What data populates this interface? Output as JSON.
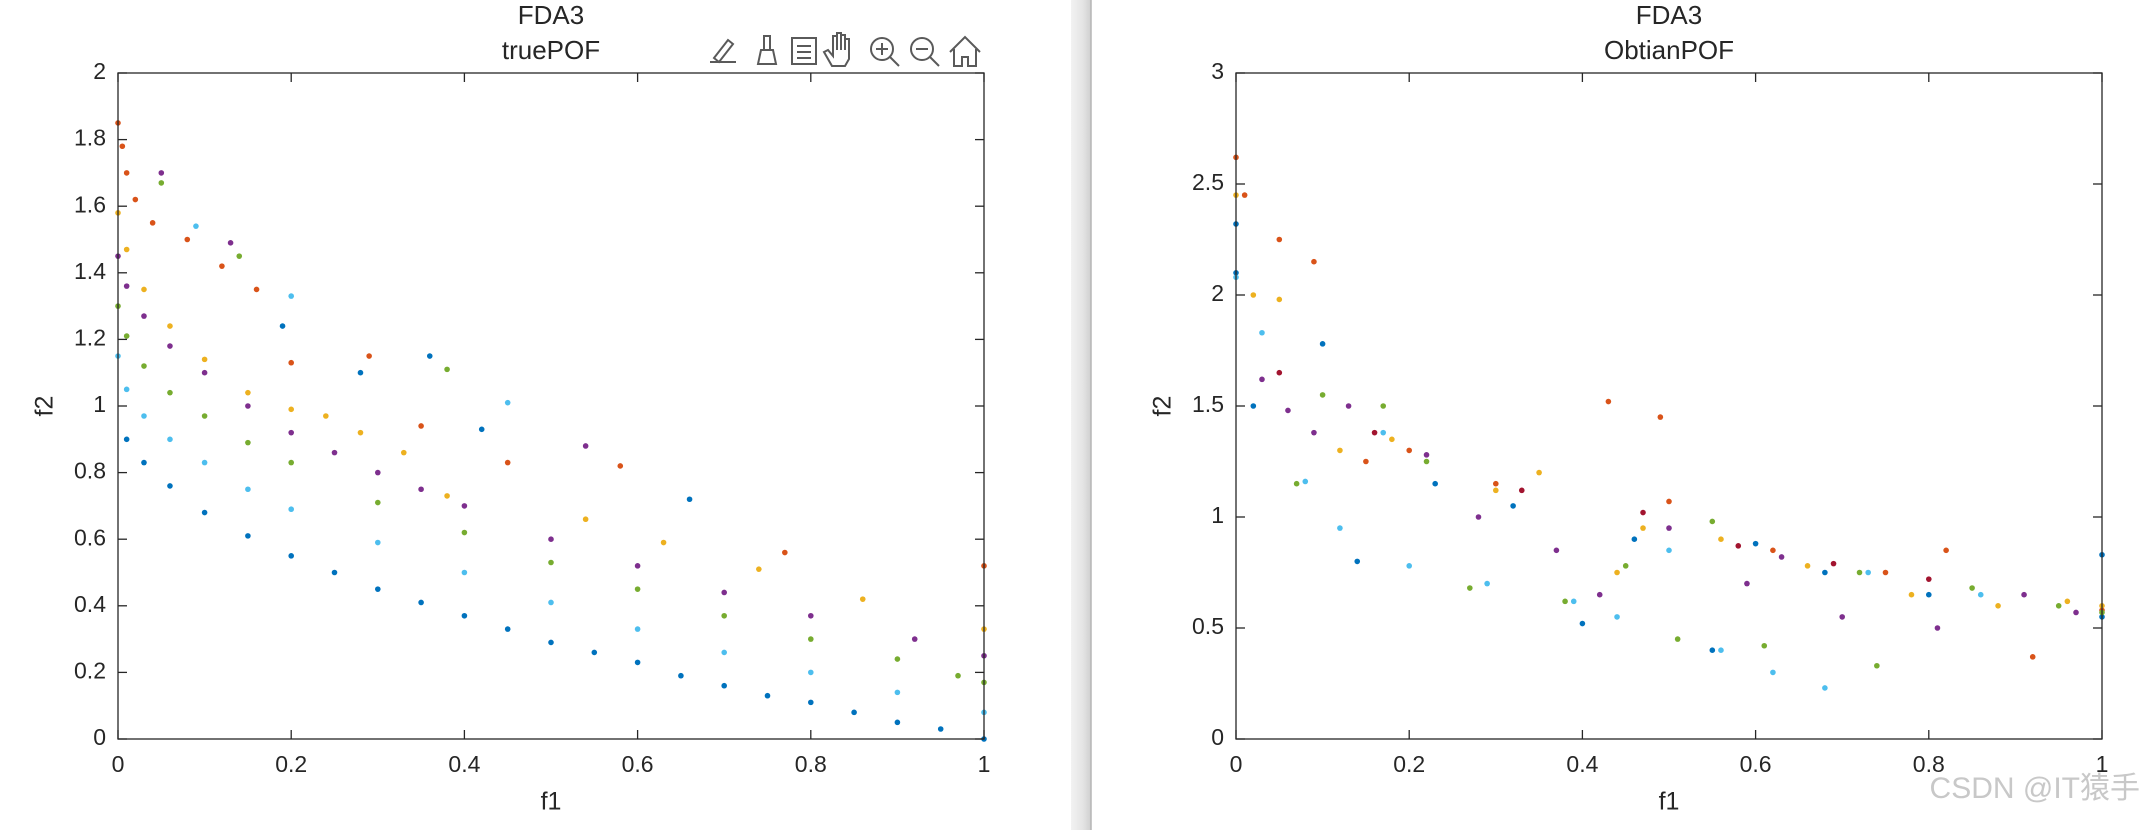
{
  "watermark": "CSDN @IT猿手",
  "chart_data": [
    {
      "type": "scatter",
      "title": "FDA3",
      "subtitle": "truePOF",
      "xlabel": "f1",
      "ylabel": "f2",
      "xlim": [
        0,
        1
      ],
      "ylim": [
        0,
        2
      ],
      "xticks": [
        0,
        0.2,
        0.4,
        0.6,
        0.8,
        1
      ],
      "yticks": [
        0,
        0.2,
        0.4,
        0.6,
        0.8,
        1,
        1.2,
        1.4,
        1.6,
        1.8,
        2
      ],
      "series": [
        {
          "color": "#0072BD",
          "x": [
            0.01,
            0.03,
            0.06,
            0.1,
            0.15,
            0.2,
            0.25,
            0.3,
            0.35,
            0.4,
            0.45,
            0.5,
            0.55,
            0.6,
            0.65,
            0.7,
            0.75,
            0.8,
            0.85,
            0.9,
            0.95,
            1,
            0.28,
            0.36,
            0.42,
            0.66,
            0.19
          ],
          "y": [
            0.9,
            0.83,
            0.76,
            0.68,
            0.61,
            0.55,
            0.5,
            0.45,
            0.41,
            0.37,
            0.33,
            0.29,
            0.26,
            0.23,
            0.19,
            0.16,
            0.13,
            0.11,
            0.08,
            0.05,
            0.03,
            0,
            1.1,
            1.15,
            0.93,
            0.72,
            1.24
          ]
        },
        {
          "color": "#4DBEEE",
          "x": [
            0,
            0.01,
            0.03,
            0.06,
            0.1,
            0.15,
            0.2,
            0.3,
            0.4,
            0.5,
            0.6,
            0.7,
            0.8,
            0.9,
            1,
            0.2,
            0.45,
            0.09
          ],
          "y": [
            1.15,
            1.05,
            0.97,
            0.9,
            0.83,
            0.75,
            0.69,
            0.59,
            0.5,
            0.41,
            0.33,
            0.26,
            0.2,
            0.14,
            0.08,
            1.33,
            1.01,
            1.54
          ]
        },
        {
          "color": "#77AC30",
          "x": [
            0,
            0.01,
            0.03,
            0.06,
            0.1,
            0.15,
            0.2,
            0.3,
            0.4,
            0.5,
            0.6,
            0.7,
            0.8,
            0.9,
            0.97,
            1,
            0.05,
            0.14,
            0.38
          ],
          "y": [
            1.3,
            1.21,
            1.12,
            1.04,
            0.97,
            0.89,
            0.83,
            0.71,
            0.62,
            0.53,
            0.45,
            0.37,
            0.3,
            0.24,
            0.19,
            0.17,
            1.67,
            1.45,
            1.11
          ]
        },
        {
          "color": "#7E2F8E",
          "x": [
            0,
            0.01,
            0.03,
            0.06,
            0.1,
            0.15,
            0.2,
            0.25,
            0.3,
            0.35,
            0.4,
            0.5,
            0.6,
            0.7,
            0.8,
            0.92,
            0.54,
            0.13,
            0.05,
            1
          ],
          "y": [
            1.45,
            1.36,
            1.27,
            1.18,
            1.1,
            1,
            0.92,
            0.86,
            0.8,
            0.75,
            0.7,
            0.6,
            0.52,
            0.44,
            0.37,
            0.3,
            0.88,
            1.49,
            1.7,
            0.25
          ]
        },
        {
          "color": "#EDB120",
          "x": [
            0,
            0.01,
            0.03,
            0.06,
            0.1,
            0.15,
            0.2,
            0.24,
            0.28,
            0.33,
            0.38,
            0.54,
            0.63,
            0.74,
            0.86,
            1
          ],
          "y": [
            1.58,
            1.47,
            1.35,
            1.24,
            1.14,
            1.04,
            0.99,
            0.97,
            0.92,
            0.86,
            0.73,
            0.66,
            0.59,
            0.51,
            0.42,
            0.33
          ]
        },
        {
          "color": "#D95319",
          "x": [
            0,
            0.005,
            0.01,
            0.02,
            0.04,
            0.08,
            0.12,
            0.16,
            0.2,
            0.29,
            0.35,
            0.45,
            0.58,
            0.77,
            1
          ],
          "y": [
            1.85,
            1.78,
            1.7,
            1.62,
            1.55,
            1.5,
            1.42,
            1.35,
            1.13,
            1.15,
            0.94,
            0.83,
            0.82,
            0.56,
            0.52
          ]
        }
      ]
    },
    {
      "type": "scatter",
      "title": "FDA3",
      "subtitle": "ObtianPOF",
      "xlabel": "f1",
      "ylabel": "f2",
      "xlim": [
        0,
        1
      ],
      "ylim": [
        0,
        3
      ],
      "xticks": [
        0,
        0.2,
        0.4,
        0.6,
        0.8,
        1
      ],
      "yticks": [
        0,
        0.5,
        1,
        1.5,
        2,
        2.5,
        3
      ],
      "series": [
        {
          "color": "#0072BD",
          "x": [
            0,
            0,
            0.02,
            0.1,
            0.14,
            0.23,
            0.32,
            0.4,
            0.46,
            0.55,
            0.6,
            0.68,
            0.8,
            1,
            1
          ],
          "y": [
            2.32,
            2.1,
            1.5,
            1.78,
            0.8,
            1.15,
            1.05,
            0.52,
            0.9,
            0.4,
            0.88,
            0.75,
            0.65,
            0.83,
            0.55
          ]
        },
        {
          "color": "#D95319",
          "x": [
            0,
            0.01,
            0.05,
            0.09,
            0.15,
            0.2,
            0.3,
            0.43,
            0.49,
            0.5,
            0.62,
            0.75,
            0.82,
            0.92,
            1
          ],
          "y": [
            2.62,
            2.45,
            2.25,
            2.15,
            1.25,
            1.3,
            1.15,
            1.52,
            1.45,
            1.07,
            0.85,
            0.75,
            0.85,
            0.37,
            0.58
          ]
        },
        {
          "color": "#EDB120",
          "x": [
            0,
            0.02,
            0.05,
            0.12,
            0.18,
            0.3,
            0.35,
            0.44,
            0.47,
            0.56,
            0.66,
            0.78,
            0.88,
            0.96,
            1
          ],
          "y": [
            2.45,
            2,
            1.98,
            1.3,
            1.35,
            1.12,
            1.2,
            0.75,
            0.95,
            0.9,
            0.78,
            0.65,
            0.6,
            0.62,
            0.6
          ]
        },
        {
          "color": "#7E2F8E",
          "x": [
            0.03,
            0.06,
            0.09,
            0.13,
            0.22,
            0.28,
            0.37,
            0.42,
            0.5,
            0.59,
            0.63,
            0.7,
            0.81,
            0.91,
            0.97
          ],
          "y": [
            1.62,
            1.48,
            1.38,
            1.5,
            1.28,
            1,
            0.85,
            0.65,
            0.95,
            0.7,
            0.82,
            0.55,
            0.5,
            0.65,
            0.57
          ]
        },
        {
          "color": "#77AC30",
          "x": [
            0.07,
            0.1,
            0.17,
            0.22,
            0.27,
            0.38,
            0.45,
            0.51,
            0.55,
            0.61,
            0.72,
            0.74,
            0.85,
            0.95,
            1
          ],
          "y": [
            1.15,
            1.55,
            1.5,
            1.25,
            0.68,
            0.62,
            0.78,
            0.45,
            0.98,
            0.42,
            0.75,
            0.33,
            0.68,
            0.6,
            0.57
          ]
        },
        {
          "color": "#4DBEEE",
          "x": [
            0,
            0.03,
            0.08,
            0.12,
            0.17,
            0.2,
            0.29,
            0.39,
            0.44,
            0.5,
            0.56,
            0.62,
            0.68,
            0.73,
            0.86
          ],
          "y": [
            2.08,
            1.83,
            1.16,
            0.95,
            1.38,
            0.78,
            0.7,
            0.62,
            0.55,
            0.85,
            0.4,
            0.3,
            0.23,
            0.75,
            0.65
          ]
        },
        {
          "color": "#A2142F",
          "x": [
            0.05,
            0.16,
            0.33,
            0.47,
            0.58,
            0.69,
            0.8
          ],
          "y": [
            1.65,
            1.38,
            1.12,
            1.02,
            0.87,
            0.79,
            0.72
          ]
        }
      ]
    }
  ]
}
